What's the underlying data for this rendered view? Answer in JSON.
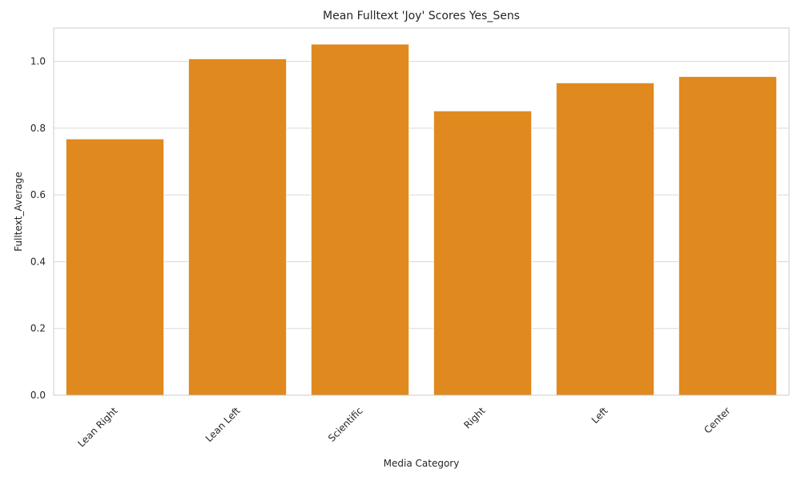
{
  "chart_data": {
    "type": "bar",
    "title": "Mean Fulltext 'Joy' Scores Yes_Sens",
    "xlabel": "Media Category",
    "ylabel": "Fulltext_Average",
    "categories": [
      "Lean Right",
      "Lean Left",
      "Scientific",
      "Right",
      "Left",
      "Center"
    ],
    "values": [
      0.768,
      1.008,
      1.052,
      0.852,
      0.936,
      0.955
    ],
    "ylim": [
      0,
      1.1
    ],
    "yticks": [
      "0.0",
      "0.2",
      "0.4",
      "0.6",
      "0.8",
      "1.0"
    ],
    "grid": true,
    "bar_color": "#e0891f",
    "grid_color": "#d9d9d9",
    "frame_color": "#cccccc"
  }
}
